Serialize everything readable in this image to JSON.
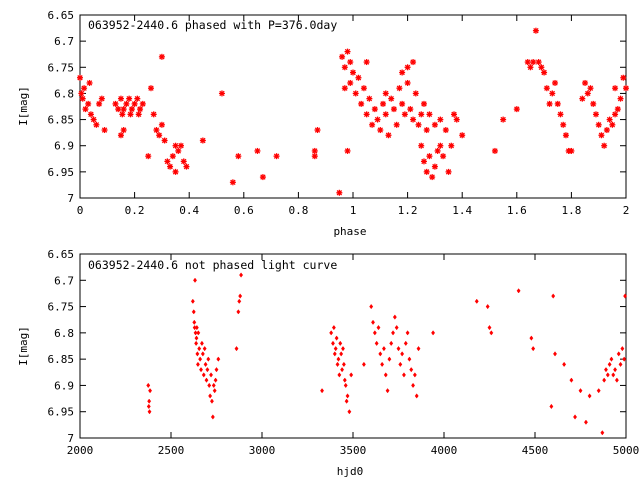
{
  "chart_data": [
    {
      "type": "scatter",
      "title": "063952-2440.6 phased with P=376.0day",
      "xlabel": "phase",
      "ylabel": "I[mag]",
      "xlim": [
        0,
        2
      ],
      "ylim": [
        6.65,
        7.0
      ],
      "y_inverted": true,
      "grid": false,
      "legend": "none",
      "marker": "star",
      "color": "#ff0000",
      "xticks": [
        0,
        0.2,
        0.4,
        0.6,
        0.8,
        1,
        1.2,
        1.4,
        1.6,
        1.8,
        2
      ],
      "xtick_labels": [
        "0",
        "0.2",
        "0.4",
        "0.6",
        "0.8",
        "1",
        "1.2",
        "1.4",
        "1.6",
        "1.8",
        "2"
      ],
      "yticks": [
        6.65,
        6.7,
        6.75,
        6.8,
        6.85,
        6.9,
        6.95,
        7.0
      ],
      "ytick_labels": [
        "6.65",
        "6.7",
        "6.75",
        "6.8",
        "6.85",
        "6.9",
        "6.95",
        "7"
      ],
      "points": [
        [
          0.0,
          6.77
        ],
        [
          0.005,
          6.8
        ],
        [
          0.01,
          6.81
        ],
        [
          0.015,
          6.79
        ],
        [
          0.02,
          6.83
        ],
        [
          0.03,
          6.82
        ],
        [
          0.035,
          6.78
        ],
        [
          0.04,
          6.84
        ],
        [
          0.05,
          6.85
        ],
        [
          0.06,
          6.86
        ],
        [
          0.07,
          6.82
        ],
        [
          0.08,
          6.81
        ],
        [
          0.09,
          6.87
        ],
        [
          0.13,
          6.82
        ],
        [
          0.14,
          6.83
        ],
        [
          0.15,
          6.81
        ],
        [
          0.155,
          6.84
        ],
        [
          0.16,
          6.83
        ],
        [
          0.17,
          6.82
        ],
        [
          0.18,
          6.81
        ],
        [
          0.185,
          6.84
        ],
        [
          0.19,
          6.83
        ],
        [
          0.2,
          6.82
        ],
        [
          0.21,
          6.81
        ],
        [
          0.215,
          6.84
        ],
        [
          0.22,
          6.83
        ],
        [
          0.23,
          6.82
        ],
        [
          0.15,
          6.88
        ],
        [
          0.16,
          6.87
        ],
        [
          0.26,
          6.79
        ],
        [
          0.27,
          6.84
        ],
        [
          0.28,
          6.87
        ],
        [
          0.29,
          6.88
        ],
        [
          0.3,
          6.86
        ],
        [
          0.31,
          6.89
        ],
        [
          0.32,
          6.93
        ],
        [
          0.33,
          6.94
        ],
        [
          0.34,
          6.92
        ],
        [
          0.35,
          6.9
        ],
        [
          0.36,
          6.91
        ],
        [
          0.37,
          6.9
        ],
        [
          0.38,
          6.93
        ],
        [
          0.39,
          6.94
        ],
        [
          0.3,
          6.73
        ],
        [
          0.25,
          6.92
        ],
        [
          0.35,
          6.95
        ],
        [
          0.45,
          6.89
        ],
        [
          0.52,
          6.8
        ],
        [
          0.56,
          6.97
        ],
        [
          0.58,
          6.92
        ],
        [
          0.65,
          6.91
        ],
        [
          0.67,
          6.96
        ],
        [
          0.72,
          6.92
        ],
        [
          0.86,
          6.91
        ],
        [
          0.87,
          6.87
        ],
        [
          0.86,
          6.92
        ],
        [
          0.95,
          6.99
        ],
        [
          0.96,
          6.73
        ],
        [
          0.97,
          6.75
        ],
        [
          0.98,
          6.72
        ],
        [
          0.99,
          6.74
        ],
        [
          1.0,
          6.76
        ],
        [
          0.97,
          6.79
        ],
        [
          0.99,
          6.78
        ],
        [
          1.01,
          6.8
        ],
        [
          1.02,
          6.77
        ],
        [
          1.03,
          6.82
        ],
        [
          1.04,
          6.79
        ],
        [
          1.05,
          6.84
        ],
        [
          1.06,
          6.81
        ],
        [
          1.07,
          6.86
        ],
        [
          1.08,
          6.83
        ],
        [
          1.09,
          6.85
        ],
        [
          1.1,
          6.87
        ],
        [
          1.11,
          6.82
        ],
        [
          1.12,
          6.84
        ],
        [
          1.13,
          6.88
        ],
        [
          1.14,
          6.81
        ],
        [
          1.15,
          6.83
        ],
        [
          1.16,
          6.86
        ],
        [
          1.17,
          6.79
        ],
        [
          1.18,
          6.82
        ],
        [
          1.19,
          6.84
        ],
        [
          1.2,
          6.78
        ],
        [
          1.21,
          6.83
        ],
        [
          1.22,
          6.85
        ],
        [
          1.23,
          6.8
        ],
        [
          1.24,
          6.86
        ],
        [
          1.25,
          6.84
        ],
        [
          1.26,
          6.82
        ],
        [
          1.27,
          6.87
        ],
        [
          1.28,
          6.84
        ],
        [
          0.98,
          6.91
        ],
        [
          1.05,
          6.74
        ],
        [
          1.12,
          6.8
        ],
        [
          1.18,
          6.76
        ],
        [
          1.2,
          6.75
        ],
        [
          1.22,
          6.74
        ],
        [
          1.25,
          6.9
        ],
        [
          1.26,
          6.93
        ],
        [
          1.27,
          6.95
        ],
        [
          1.28,
          6.92
        ],
        [
          1.29,
          6.96
        ],
        [
          1.3,
          6.94
        ],
        [
          1.31,
          6.91
        ],
        [
          1.32,
          6.9
        ],
        [
          1.33,
          6.92
        ],
        [
          1.35,
          6.95
        ],
        [
          1.36,
          6.9
        ],
        [
          1.3,
          6.86
        ],
        [
          1.32,
          6.85
        ],
        [
          1.34,
          6.87
        ],
        [
          1.37,
          6.84
        ],
        [
          1.38,
          6.85
        ],
        [
          1.4,
          6.88
        ],
        [
          1.52,
          6.91
        ],
        [
          1.55,
          6.85
        ],
        [
          1.6,
          6.83
        ],
        [
          1.64,
          6.74
        ],
        [
          1.65,
          6.75
        ],
        [
          1.66,
          6.74
        ],
        [
          1.67,
          6.68
        ],
        [
          1.68,
          6.74
        ],
        [
          1.69,
          6.75
        ],
        [
          1.7,
          6.76
        ],
        [
          1.71,
          6.79
        ],
        [
          1.72,
          6.82
        ],
        [
          1.73,
          6.8
        ],
        [
          1.74,
          6.78
        ],
        [
          1.75,
          6.82
        ],
        [
          1.76,
          6.84
        ],
        [
          1.77,
          6.86
        ],
        [
          1.78,
          6.88
        ],
        [
          1.79,
          6.91
        ],
        [
          1.8,
          6.91
        ],
        [
          1.84,
          6.81
        ],
        [
          1.85,
          6.78
        ],
        [
          1.86,
          6.8
        ],
        [
          1.87,
          6.79
        ],
        [
          1.88,
          6.82
        ],
        [
          1.89,
          6.84
        ],
        [
          1.9,
          6.86
        ],
        [
          1.91,
          6.88
        ],
        [
          1.92,
          6.9
        ],
        [
          1.93,
          6.87
        ],
        [
          1.94,
          6.85
        ],
        [
          1.95,
          6.86
        ],
        [
          1.96,
          6.84
        ],
        [
          1.97,
          6.83
        ],
        [
          1.98,
          6.81
        ],
        [
          1.99,
          6.77
        ],
        [
          2.0,
          6.79
        ],
        [
          1.96,
          6.79
        ]
      ]
    },
    {
      "type": "scatter",
      "title": "063952-2440.6 not phased light curve",
      "xlabel": "hjd0",
      "ylabel": "I[mag]",
      "xlim": [
        2000,
        5000
      ],
      "ylim": [
        6.65,
        7.0
      ],
      "y_inverted": true,
      "grid": false,
      "legend": "none",
      "marker": "diamond",
      "color": "#ff0000",
      "xticks": [
        2000,
        2500,
        3000,
        3500,
        4000,
        4500,
        5000
      ],
      "xtick_labels": [
        "2000",
        "2500",
        "3000",
        "3500",
        "4000",
        "4500",
        "5000"
      ],
      "yticks": [
        6.65,
        6.7,
        6.75,
        6.8,
        6.85,
        6.9,
        6.95,
        7.0
      ],
      "ytick_labels": [
        "6.65",
        "6.7",
        "6.75",
        "6.8",
        "6.85",
        "6.9",
        "6.95",
        "7"
      ],
      "points": [
        [
          2375,
          6.9
        ],
        [
          2378,
          6.94
        ],
        [
          2380,
          6.93
        ],
        [
          2382,
          6.95
        ],
        [
          2385,
          6.91
        ],
        [
          2620,
          6.74
        ],
        [
          2625,
          6.76
        ],
        [
          2628,
          6.78
        ],
        [
          2630,
          6.79
        ],
        [
          2632,
          6.7
        ],
        [
          2635,
          6.8
        ],
        [
          2638,
          6.82
        ],
        [
          2640,
          6.81
        ],
        [
          2642,
          6.79
        ],
        [
          2645,
          6.84
        ],
        [
          2648,
          6.86
        ],
        [
          2650,
          6.8
        ],
        [
          2655,
          6.83
        ],
        [
          2660,
          6.85
        ],
        [
          2665,
          6.87
        ],
        [
          2670,
          6.82
        ],
        [
          2675,
          6.84
        ],
        [
          2680,
          6.88
        ],
        [
          2685,
          6.83
        ],
        [
          2690,
          6.86
        ],
        [
          2695,
          6.89
        ],
        [
          2700,
          6.87
        ],
        [
          2705,
          6.85
        ],
        [
          2710,
          6.9
        ],
        [
          2715,
          6.92
        ],
        [
          2720,
          6.88
        ],
        [
          2725,
          6.93
        ],
        [
          2730,
          6.96
        ],
        [
          2735,
          6.9
        ],
        [
          2740,
          6.91
        ],
        [
          2745,
          6.89
        ],
        [
          2750,
          6.87
        ],
        [
          2760,
          6.85
        ],
        [
          2860,
          6.83
        ],
        [
          2870,
          6.76
        ],
        [
          2875,
          6.74
        ],
        [
          2880,
          6.73
        ],
        [
          2885,
          6.69
        ],
        [
          3330,
          6.91
        ],
        [
          3380,
          6.8
        ],
        [
          3390,
          6.82
        ],
        [
          3395,
          6.79
        ],
        [
          3400,
          6.84
        ],
        [
          3405,
          6.83
        ],
        [
          3410,
          6.81
        ],
        [
          3415,
          6.86
        ],
        [
          3420,
          6.85
        ],
        [
          3425,
          6.88
        ],
        [
          3430,
          6.82
        ],
        [
          3435,
          6.84
        ],
        [
          3440,
          6.87
        ],
        [
          3445,
          6.83
        ],
        [
          3450,
          6.86
        ],
        [
          3455,
          6.89
        ],
        [
          3460,
          6.9
        ],
        [
          3465,
          6.93
        ],
        [
          3470,
          6.92
        ],
        [
          3480,
          6.95
        ],
        [
          3490,
          6.88
        ],
        [
          3560,
          6.86
        ],
        [
          3600,
          6.75
        ],
        [
          3610,
          6.78
        ],
        [
          3620,
          6.8
        ],
        [
          3630,
          6.82
        ],
        [
          3640,
          6.79
        ],
        [
          3650,
          6.84
        ],
        [
          3660,
          6.86
        ],
        [
          3670,
          6.83
        ],
        [
          3680,
          6.88
        ],
        [
          3690,
          6.91
        ],
        [
          3700,
          6.85
        ],
        [
          3710,
          6.82
        ],
        [
          3720,
          6.8
        ],
        [
          3730,
          6.77
        ],
        [
          3740,
          6.79
        ],
        [
          3750,
          6.83
        ],
        [
          3760,
          6.86
        ],
        [
          3770,
          6.84
        ],
        [
          3780,
          6.88
        ],
        [
          3790,
          6.82
        ],
        [
          3800,
          6.8
        ],
        [
          3810,
          6.85
        ],
        [
          3820,
          6.87
        ],
        [
          3830,
          6.9
        ],
        [
          3840,
          6.88
        ],
        [
          3850,
          6.92
        ],
        [
          3860,
          6.83
        ],
        [
          3940,
          6.8
        ],
        [
          4180,
          6.74
        ],
        [
          4240,
          6.75
        ],
        [
          4250,
          6.79
        ],
        [
          4260,
          6.8
        ],
        [
          4410,
          6.72
        ],
        [
          4480,
          6.81
        ],
        [
          4490,
          6.83
        ],
        [
          4600,
          6.73
        ],
        [
          4590,
          6.94
        ],
        [
          4610,
          6.84
        ],
        [
          4660,
          6.86
        ],
        [
          4700,
          6.89
        ],
        [
          4720,
          6.96
        ],
        [
          4750,
          6.91
        ],
        [
          4780,
          6.97
        ],
        [
          4800,
          6.92
        ],
        [
          4850,
          6.91
        ],
        [
          4870,
          6.99
        ],
        [
          4880,
          6.89
        ],
        [
          4890,
          6.87
        ],
        [
          4900,
          6.88
        ],
        [
          4910,
          6.86
        ],
        [
          4920,
          6.85
        ],
        [
          4930,
          6.88
        ],
        [
          4940,
          6.87
        ],
        [
          4950,
          6.89
        ],
        [
          4960,
          6.84
        ],
        [
          4970,
          6.86
        ],
        [
          4980,
          6.83
        ],
        [
          4990,
          6.85
        ],
        [
          4995,
          6.73
        ]
      ]
    }
  ]
}
